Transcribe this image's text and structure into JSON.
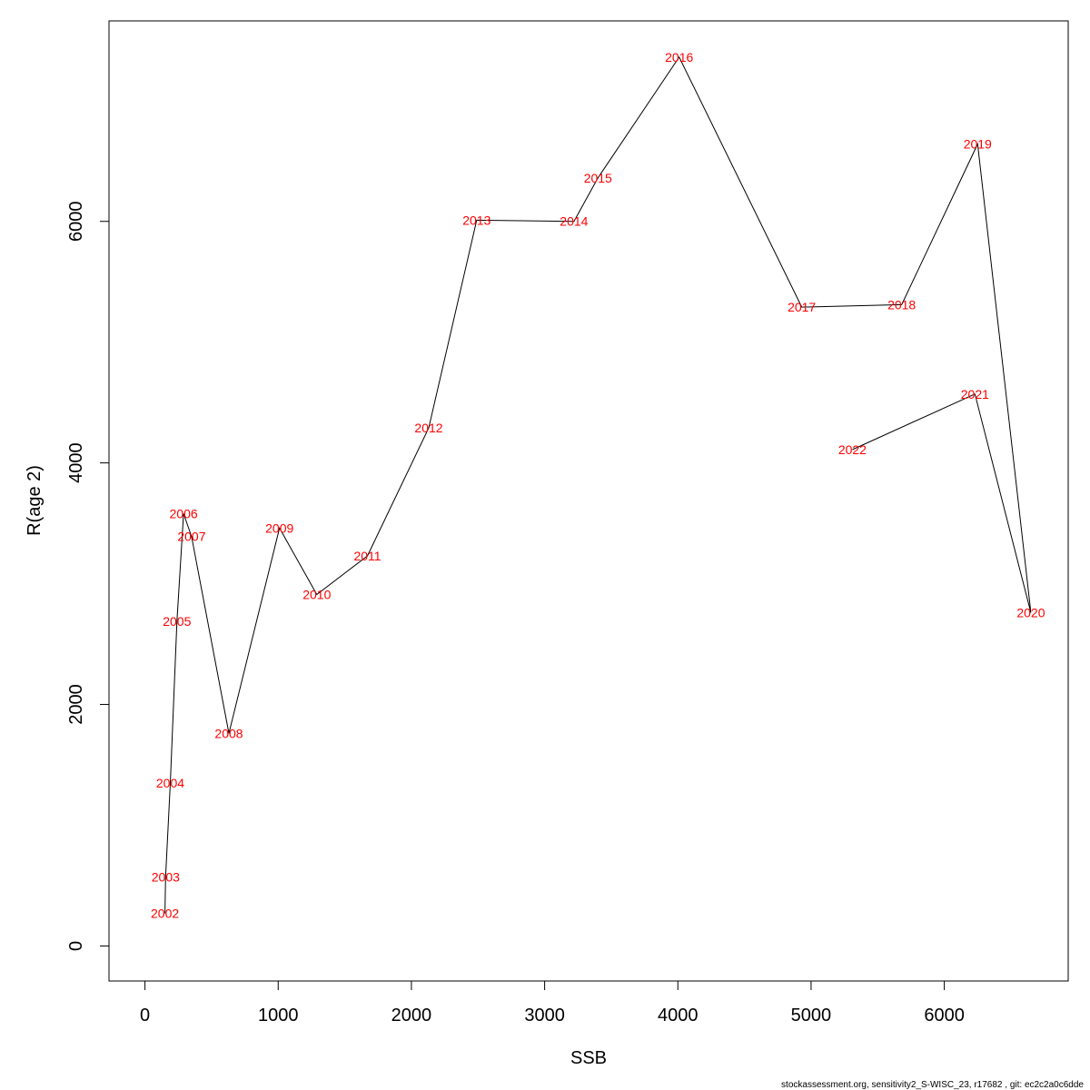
{
  "chart_data": {
    "type": "line",
    "xlabel": "SSB",
    "ylabel": "R(age 2)",
    "xlim": [
      -270,
      6930
    ],
    "ylim": [
      -290,
      7660
    ],
    "x_ticks": [
      0,
      1000,
      2000,
      3000,
      4000,
      5000,
      6000
    ],
    "y_ticks": [
      0,
      2000,
      4000,
      6000
    ],
    "x_tick_labels": [
      "0",
      "1000",
      "2000",
      "3000",
      "4000",
      "5000",
      "6000"
    ],
    "y_tick_labels": [
      "0",
      "2000",
      "4000",
      "6000"
    ],
    "grid": false,
    "point_label_color": "#ff0000",
    "line_color": "#000000",
    "points": [
      {
        "label": "2002",
        "x": 150,
        "y": 270
      },
      {
        "label": "2003",
        "x": 155,
        "y": 570
      },
      {
        "label": "2004",
        "x": 190,
        "y": 1350
      },
      {
        "label": "2005",
        "x": 240,
        "y": 2690
      },
      {
        "label": "2006",
        "x": 290,
        "y": 3580
      },
      {
        "label": "2007",
        "x": 350,
        "y": 3390
      },
      {
        "label": "2008",
        "x": 630,
        "y": 1760
      },
      {
        "label": "2009",
        "x": 1010,
        "y": 3460
      },
      {
        "label": "2010",
        "x": 1290,
        "y": 2910
      },
      {
        "label": "2011",
        "x": 1670,
        "y": 3230
      },
      {
        "label": "2012",
        "x": 2130,
        "y": 4290
      },
      {
        "label": "2013",
        "x": 2490,
        "y": 6010
      },
      {
        "label": "2014",
        "x": 3220,
        "y": 6000
      },
      {
        "label": "2015",
        "x": 3400,
        "y": 6360
      },
      {
        "label": "2016",
        "x": 4010,
        "y": 7360
      },
      {
        "label": "2017",
        "x": 4930,
        "y": 5290
      },
      {
        "label": "2018",
        "x": 5680,
        "y": 5310
      },
      {
        "label": "2019",
        "x": 6250,
        "y": 6640
      },
      {
        "label": "2020",
        "x": 6650,
        "y": 2760
      },
      {
        "label": "2021",
        "x": 6230,
        "y": 4570
      },
      {
        "label": "2022",
        "x": 5310,
        "y": 4110
      }
    ]
  },
  "footer": {
    "text": "stockassessment.org, sensitivity2_S-WISC_23, r17682 , git: ec2c2a0c6dde"
  }
}
